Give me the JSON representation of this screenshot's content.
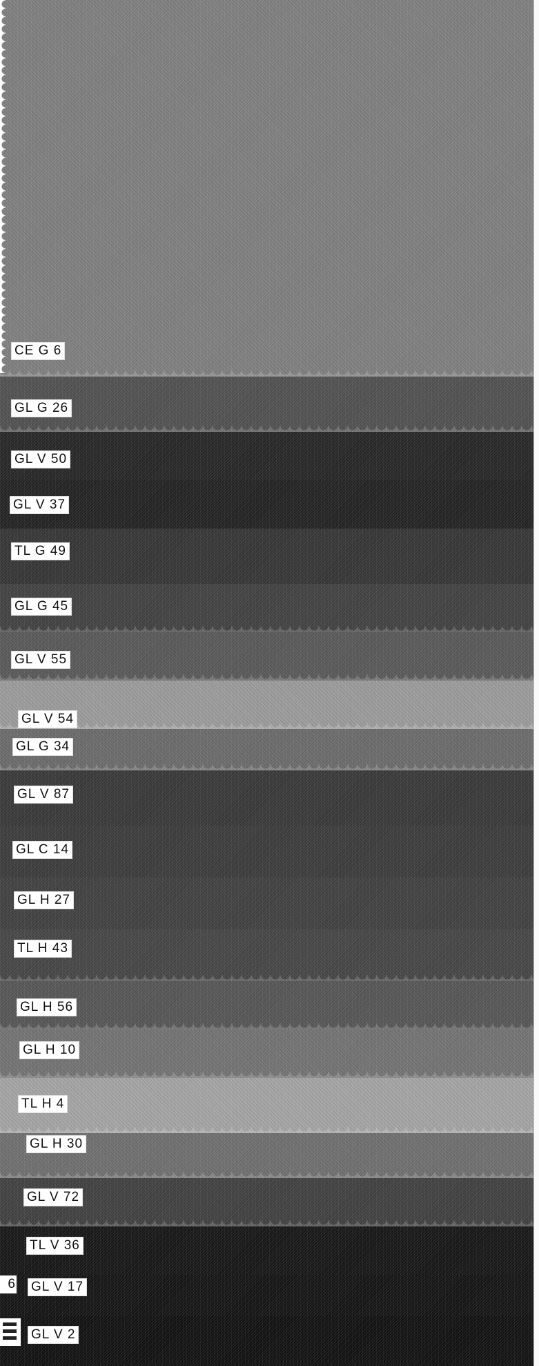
{
  "swatches": [
    {
      "id": "s1",
      "label": "CE G  6",
      "tone": "#7e7e7e"
    },
    {
      "id": "s2",
      "label": "GL G 26",
      "tone": "#505050"
    },
    {
      "id": "s3",
      "label": "GL V 50",
      "tone": "#262626"
    },
    {
      "id": "s4",
      "label": "GL V 37",
      "tone": "#222222"
    },
    {
      "id": "s5",
      "label": "TL G 49",
      "tone": "#353535"
    },
    {
      "id": "s6",
      "label": "GL G 45",
      "tone": "#414141"
    },
    {
      "id": "s7",
      "label": "GL V 55",
      "tone": "#585858"
    },
    {
      "id": "s8",
      "label": "GL V 54",
      "tone": "#9a9a9a"
    },
    {
      "id": "s9",
      "label": "GL G 34",
      "tone": "#6a6a6a"
    },
    {
      "id": "s10",
      "label": "GL V 87",
      "tone": "#383838"
    },
    {
      "id": "s11",
      "label": "GL C 14",
      "tone": "#3b3b3b"
    },
    {
      "id": "s12",
      "label": "GL H 27",
      "tone": "#404040"
    },
    {
      "id": "s13",
      "label": "TL H 43",
      "tone": "#454545"
    },
    {
      "id": "s14",
      "label": "GL H 56",
      "tone": "#555555"
    },
    {
      "id": "s15",
      "label": "GL H 10",
      "tone": "#727272"
    },
    {
      "id": "s16",
      "label": "TL H  4",
      "tone": "#a3a3a3"
    },
    {
      "id": "s17",
      "label": "GL H 30",
      "tone": "#6e6e6e"
    },
    {
      "id": "s18",
      "label": "GL V 72",
      "tone": "#404040"
    },
    {
      "id": "s19",
      "label": "TL V 36",
      "tone": "#161616"
    },
    {
      "id": "s20",
      "label": "GL V 17",
      "tone": "#141414"
    },
    {
      "id": "s21",
      "label": "GL V 2",
      "tone": "#111111"
    }
  ],
  "side_tab": "6"
}
